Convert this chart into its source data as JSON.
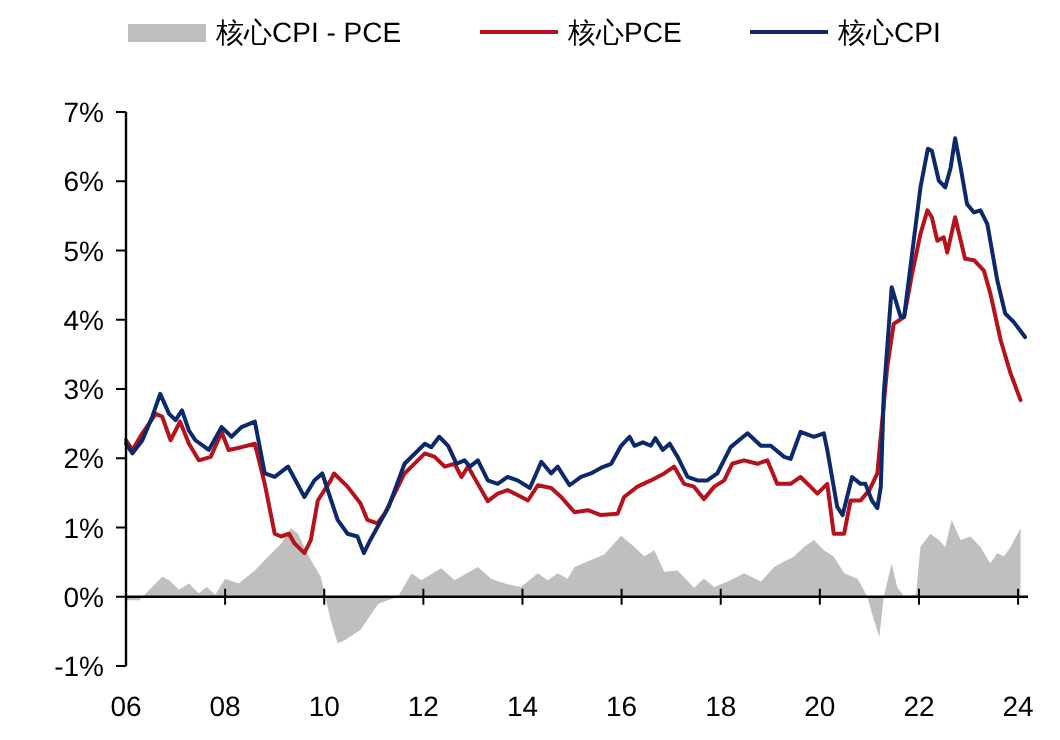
{
  "chart_data": {
    "type": "line",
    "legend": "top",
    "xlim": [
      2006,
      2024.2
    ],
    "ylim": [
      -1,
      7
    ],
    "xticks": [
      {
        "value": 2006,
        "label": "06"
      },
      {
        "value": 2008,
        "label": "08"
      },
      {
        "value": 2010,
        "label": "10"
      },
      {
        "value": 2012,
        "label": "12"
      },
      {
        "value": 2014,
        "label": "14"
      },
      {
        "value": 2016,
        "label": "16"
      },
      {
        "value": 2018,
        "label": "18"
      },
      {
        "value": 2020,
        "label": "20"
      },
      {
        "value": 2022,
        "label": "22"
      },
      {
        "value": 2024,
        "label": "24"
      }
    ],
    "yticks": [
      {
        "value": -1,
        "label": "-1%"
      },
      {
        "value": 0,
        "label": "0%"
      },
      {
        "value": 1,
        "label": "1%"
      },
      {
        "value": 2,
        "label": "2%"
      },
      {
        "value": 3,
        "label": "3%"
      },
      {
        "value": 4,
        "label": "4%"
      },
      {
        "value": 5,
        "label": "5%"
      },
      {
        "value": 6,
        "label": "6%"
      },
      {
        "value": 7,
        "label": "7%"
      }
    ],
    "series": [
      {
        "name": "核心CPI - PCE",
        "type": "area",
        "color": "#bfbfbf",
        "x": [
          2006,
          2006.27,
          2006.53,
          2006.73,
          2006.87,
          2007.07,
          2007.27,
          2007.47,
          2007.63,
          2007.8,
          2008,
          2008.27,
          2008.6,
          2008.87,
          2009.13,
          2009.33,
          2009.47,
          2009.73,
          2009.93,
          2010.13,
          2010.27,
          2010.4,
          2010.73,
          2011.09,
          2011.49,
          2011.76,
          2011.96,
          2012.36,
          2012.63,
          2013.1,
          2013.37,
          2013.64,
          2013.97,
          2014.31,
          2014.51,
          2014.71,
          2014.91,
          2015.05,
          2015.38,
          2015.65,
          2015.99,
          2016.26,
          2016.46,
          2016.66,
          2016.86,
          2017.13,
          2017.46,
          2017.66,
          2017.87,
          2018.2,
          2018.47,
          2018.81,
          2019.08,
          2019.28,
          2019.48,
          2019.68,
          2019.88,
          2020.08,
          2020.28,
          2020.49,
          2020.76,
          2020.96,
          2021.05,
          2021.2,
          2021.29,
          2021.45,
          2021.56,
          2021.7,
          2021.94,
          2022.03,
          2022.23,
          2022.4,
          2022.53,
          2022.66,
          2022.84,
          2023.04,
          2023.24,
          2023.44,
          2023.58,
          2023.71,
          2023.85,
          2024.05
        ],
        "values": [
          -0.05,
          -0.05,
          0.14,
          0.29,
          0.24,
          0.1,
          0.19,
          0.05,
          0.14,
          0.03,
          0.26,
          0.19,
          0.38,
          0.58,
          0.77,
          0.99,
          0.91,
          0.53,
          0.29,
          -0.34,
          -0.67,
          -0.63,
          -0.48,
          -0.1,
          0,
          0.34,
          0.24,
          0.41,
          0.24,
          0.43,
          0.26,
          0.19,
          0.14,
          0.34,
          0.24,
          0.34,
          0.26,
          0.43,
          0.53,
          0.61,
          0.88,
          0.72,
          0.58,
          0.67,
          0.36,
          0.38,
          0.13,
          0.26,
          0.14,
          0.24,
          0.34,
          0.22,
          0.43,
          0.51,
          0.58,
          0.72,
          0.82,
          0.67,
          0.58,
          0.34,
          0.26,
          0,
          -0.24,
          -0.58,
          0,
          0.48,
          0.14,
          0,
          0.03,
          0.72,
          0.91,
          0.82,
          0.72,
          1.11,
          0.82,
          0.87,
          0.72,
          0.48,
          0.63,
          0.58,
          0.72,
          0.99
        ]
      },
      {
        "name": "核心PCE",
        "type": "line",
        "color": "#b5121b",
        "x": [
          2006,
          2006.13,
          2006.33,
          2006.6,
          2006.73,
          2006.9,
          2007.09,
          2007.27,
          2007.47,
          2007.71,
          2007.93,
          2008.07,
          2008.33,
          2008.6,
          2008.8,
          2009,
          2009.13,
          2009.29,
          2009.4,
          2009.6,
          2009.73,
          2009.87,
          2010.13,
          2010.2,
          2010.47,
          2010.73,
          2010.87,
          2011.07,
          2011.22,
          2011.62,
          2011.76,
          2012.03,
          2012.23,
          2012.43,
          2012.63,
          2012.77,
          2012.9,
          2013.1,
          2013.3,
          2013.5,
          2013.7,
          2013.9,
          2014.11,
          2014.31,
          2014.58,
          2014.78,
          2015.05,
          2015.32,
          2015.58,
          2015.92,
          2016.05,
          2016.32,
          2016.59,
          2016.86,
          2017.06,
          2017.26,
          2017.46,
          2017.66,
          2017.87,
          2018.07,
          2018.23,
          2018.47,
          2018.74,
          2018.94,
          2019.14,
          2019.41,
          2019.61,
          2019.81,
          2019.95,
          2020.15,
          2020.28,
          2020.49,
          2020.62,
          2020.82,
          2021,
          2021.16,
          2021.36,
          2021.49,
          2021.7,
          2021.86,
          2022.03,
          2022.17,
          2022.26,
          2022.37,
          2022.5,
          2022.57,
          2022.73,
          2022.93,
          2023.11,
          2023.31,
          2023.44,
          2023.65,
          2023.85,
          2024.05
        ],
        "values": [
          2.26,
          2.12,
          2.36,
          2.64,
          2.6,
          2.26,
          2.53,
          2.21,
          1.97,
          2.02,
          2.38,
          2.12,
          2.16,
          2.21,
          1.63,
          0.91,
          0.87,
          0.91,
          0.77,
          0.63,
          0.82,
          1.39,
          1.68,
          1.78,
          1.59,
          1.35,
          1.11,
          1.06,
          1.2,
          1.78,
          1.88,
          2.07,
          2.02,
          1.88,
          1.92,
          1.73,
          1.88,
          1.63,
          1.38,
          1.49,
          1.54,
          1.47,
          1.39,
          1.61,
          1.57,
          1.44,
          1.22,
          1.25,
          1.18,
          1.2,
          1.44,
          1.59,
          1.68,
          1.78,
          1.88,
          1.63,
          1.59,
          1.41,
          1.59,
          1.68,
          1.92,
          1.97,
          1.92,
          1.97,
          1.63,
          1.63,
          1.73,
          1.59,
          1.49,
          1.63,
          0.91,
          0.91,
          1.39,
          1.39,
          1.54,
          1.78,
          3.32,
          3.94,
          4.04,
          4.66,
          5.24,
          5.58,
          5.48,
          5.14,
          5.19,
          4.97,
          5.48,
          4.88,
          4.86,
          4.71,
          4.38,
          3.7,
          3.22,
          2.84
        ]
      },
      {
        "name": "核心CPI",
        "type": "line",
        "color": "#0c2a6b",
        "x": [
          2006,
          2006.13,
          2006.33,
          2006.53,
          2006.69,
          2006.87,
          2007,
          2007.13,
          2007.27,
          2007.4,
          2007.67,
          2007.93,
          2008.13,
          2008.33,
          2008.6,
          2008.8,
          2009,
          2009.27,
          2009.6,
          2009.8,
          2009.96,
          2010.27,
          2010.47,
          2010.67,
          2010.8,
          2010.93,
          2011.3,
          2011.62,
          2012.03,
          2012.16,
          2012.32,
          2012.5,
          2012.67,
          2012.83,
          2012.94,
          2013.1,
          2013.3,
          2013.5,
          2013.7,
          2013.9,
          2014.15,
          2014.38,
          2014.58,
          2014.71,
          2014.95,
          2015.18,
          2015.38,
          2015.58,
          2015.79,
          2015.99,
          2016.16,
          2016.26,
          2016.43,
          2016.59,
          2016.68,
          2016.83,
          2016.97,
          2017.13,
          2017.33,
          2017.53,
          2017.73,
          2017.93,
          2018.2,
          2018.54,
          2018.81,
          2019.01,
          2019.28,
          2019.41,
          2019.61,
          2019.88,
          2020.08,
          2020.15,
          2020.35,
          2020.46,
          2020.65,
          2020.82,
          2020.92,
          2021.05,
          2021.16,
          2021.23,
          2021.29,
          2021.45,
          2021.63,
          2021.7,
          2021.86,
          2022.03,
          2022.18,
          2022.26,
          2022.4,
          2022.53,
          2022.64,
          2022.73,
          2022.84,
          2022.97,
          2023.11,
          2023.24,
          2023.38,
          2023.58,
          2023.74,
          2023.91,
          2024.14
        ],
        "values": [
          2.21,
          2.07,
          2.26,
          2.6,
          2.93,
          2.64,
          2.55,
          2.69,
          2.4,
          2.26,
          2.12,
          2.45,
          2.31,
          2.45,
          2.53,
          1.78,
          1.73,
          1.88,
          1.44,
          1.68,
          1.78,
          1.11,
          0.91,
          0.87,
          0.63,
          0.82,
          1.3,
          1.92,
          2.21,
          2.16,
          2.31,
          2.18,
          1.92,
          1.97,
          1.88,
          1.97,
          1.68,
          1.63,
          1.73,
          1.68,
          1.57,
          1.95,
          1.78,
          1.88,
          1.61,
          1.73,
          1.78,
          1.86,
          1.92,
          2.18,
          2.31,
          2.18,
          2.23,
          2.18,
          2.29,
          2.12,
          2.21,
          2.02,
          1.73,
          1.68,
          1.68,
          1.78,
          2.16,
          2.36,
          2.18,
          2.18,
          2.02,
          1.99,
          2.38,
          2.31,
          2.36,
          2.12,
          1.3,
          1.18,
          1.73,
          1.63,
          1.63,
          1.39,
          1.28,
          1.59,
          2.93,
          4.47,
          4.04,
          4.04,
          4.95,
          5.91,
          6.47,
          6.44,
          6.01,
          5.91,
          6.2,
          6.62,
          6.2,
          5.67,
          5.55,
          5.58,
          5.38,
          4.57,
          4.09,
          3.97,
          3.75
        ]
      }
    ]
  }
}
